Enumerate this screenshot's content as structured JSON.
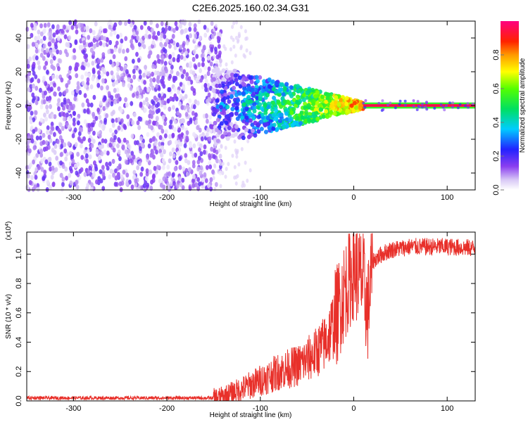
{
  "title": "C2E6.2025.160.02.34.G31",
  "chart_data": [
    {
      "type": "heatmap",
      "xlabel": "Height of straight line (km)",
      "ylabel": "Frequency (Hz)",
      "xlim": [
        -350,
        130
      ],
      "ylim": [
        -50,
        50
      ],
      "x_ticks": [
        -300,
        -200,
        -100,
        0,
        100
      ],
      "y_ticks": [
        -40,
        -20,
        0,
        20,
        40
      ],
      "colorbar": {
        "label": "Normalized spectral amplitude",
        "ticks": [
          "0.0",
          "0.2",
          "0.4",
          "0.6",
          "0.8"
        ],
        "range": [
          0,
          1
        ]
      },
      "features": {
        "noise_region_x": [
          -350,
          -150
        ],
        "transition_region_x": [
          -150,
          10
        ],
        "line_region_x": [
          10,
          130
        ],
        "line_frequency": 0,
        "line_amplitude": 0.95
      }
    },
    {
      "type": "line",
      "xlabel": "Height of straight line (km)",
      "ylabel": "SNR (10 * v/v)",
      "scale_label": "(x10^4)",
      "xlim": [
        -350,
        130
      ],
      "ylim": [
        0,
        1.15
      ],
      "x_ticks": [
        -300,
        -200,
        -100,
        0,
        100
      ],
      "y_ticks": [
        "0.0",
        "0.2",
        "0.4",
        "0.6",
        "0.8",
        "1.0"
      ],
      "color": "#e8302a",
      "x": [
        -350,
        -300,
        -250,
        -200,
        -150,
        -140,
        -120,
        -100,
        -80,
        -60,
        -50,
        -40,
        -30,
        -20,
        -10,
        0,
        10,
        15,
        20,
        30,
        40,
        60,
        80,
        100,
        130
      ],
      "y": [
        0.02,
        0.02,
        0.02,
        0.02,
        0.02,
        0.03,
        0.08,
        0.14,
        0.2,
        0.24,
        0.28,
        0.33,
        0.4,
        0.55,
        0.75,
        0.9,
        0.82,
        0.6,
        0.95,
        1.0,
        1.03,
        1.05,
        1.05,
        1.05,
        1.04
      ]
    }
  ]
}
